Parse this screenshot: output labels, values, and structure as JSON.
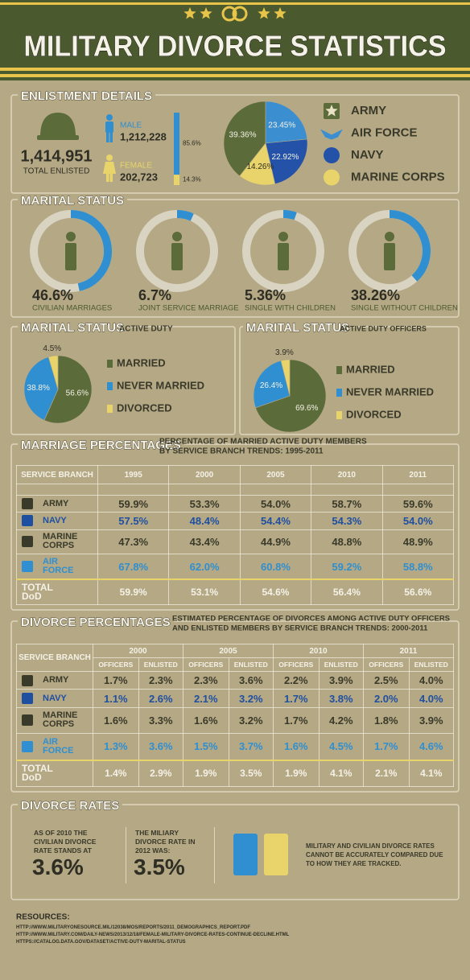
{
  "header": {
    "title": "MILITARY DIVORCE STATISTICS"
  },
  "enlistment": {
    "title": "ENLISTMENT DETAILS",
    "total": "1,414,951",
    "total_label": "TOTAL ENLISTED",
    "male": {
      "label": "MALE",
      "count": "1,212,228"
    },
    "female": {
      "label": "FEMALE",
      "count": "202,723"
    },
    "gender_share": {
      "type": "bar",
      "values": [
        85.6,
        14.3
      ],
      "value_labels": [
        "85.6%",
        "14.3%"
      ],
      "colors": [
        "#2f8fd0",
        "#e8d46a"
      ]
    },
    "branches": {
      "type": "pie",
      "categories": [
        "ARMY",
        "AIR FORCE",
        "NAVY",
        "MARINE CORPS"
      ],
      "values": [
        39.36,
        23.45,
        22.92,
        14.26
      ],
      "value_labels": [
        "39.36%",
        "23.45%",
        "22.92%",
        "14.26%"
      ],
      "colors": [
        "#5c6b3a",
        "#3b8fd0",
        "#2352a8",
        "#e8d46a"
      ]
    }
  },
  "marital_status": {
    "title": "MARITAL STATUS",
    "color": "#2f8fd0",
    "groups": [
      {
        "value": 46.6,
        "value_label": "46.6%",
        "label": "CIVILIAN MARRIAGES"
      },
      {
        "value": 6.7,
        "value_label": "6.7%",
        "label": "JOINT SERVICE MARRIAGE"
      },
      {
        "value": 5.36,
        "value_label": "5.36%",
        "label": "SINGLE WITH CHILDREN"
      },
      {
        "value": 38.26,
        "value_label": "38.26%",
        "label": "SINGLE WITHOUT CHILDREN"
      }
    ]
  },
  "active_duty": {
    "title": "MARITAL STATUS",
    "subtitle": "ACTIVE DUTY",
    "chart": {
      "type": "pie",
      "categories": [
        "MARRIED",
        "NEVER MARRIED",
        "DIVORCED"
      ],
      "values": [
        56.6,
        38.8,
        4.5
      ],
      "value_labels": [
        "56.6%",
        "38.8%",
        "4.5%"
      ],
      "colors": [
        "#5c6b3a",
        "#2f8fd0",
        "#e8d46a"
      ]
    }
  },
  "active_duty_officers": {
    "title": "MARITAL STATUS",
    "subtitle": "ACTIVE DUTY OFFICERS",
    "chart": {
      "type": "pie",
      "categories": [
        "MARRIED",
        "NEVER MARRIED",
        "DIVORCED"
      ],
      "values": [
        69.6,
        26.4,
        3.9
      ],
      "value_labels": [
        "69.6%",
        "26.4%",
        "3.9%"
      ],
      "colors": [
        "#5c6b3a",
        "#2f8fd0",
        "#e8d46a"
      ]
    }
  },
  "marriage_percentages": {
    "title": "MARRIAGE PERCENTAGES",
    "subtitle": [
      "PERCENTAGE OF MARRIED ACTIVE DUTY MEMBERS",
      "BY SERVICE BRANCH TRENDS: 1995-2011"
    ],
    "table": {
      "header": [
        "SERVICE BRANCH",
        "1995",
        "2000",
        "2005",
        "2010",
        "2011"
      ],
      "row_colors": [
        "#3a3a2a",
        "#1f4fa0",
        "#3a3a2a",
        "#2f8fd0",
        "#f4f1e6"
      ],
      "rows": [
        [
          "ARMY",
          "59.9%",
          "53.3%",
          "54.0%",
          "58.7%",
          "59.6%"
        ],
        [
          "NAVY",
          "57.5%",
          "48.4%",
          "54.4%",
          "54.3%",
          "54.0%"
        ],
        [
          "MARINE CORPS",
          "47.3%",
          "43.4%",
          "44.9%",
          "48.8%",
          "48.9%"
        ],
        [
          "AIR FORCE",
          "67.8%",
          "62.0%",
          "60.8%",
          "59.2%",
          "58.8%"
        ],
        [
          "TOTAL DoD",
          "59.9%",
          "53.1%",
          "54.6%",
          "56.4%",
          "56.6%"
        ]
      ]
    }
  },
  "divorce_percentages": {
    "title": "DIVORCE PERCENTAGES",
    "subtitle": [
      "ESTIMATED PERCENTAGE OF DIVORCES AMONG ACTIVE DUTY OFFICERS",
      "AND ENLISTED MEMBERS BY SERVICE BRANCH TRENDS: 2000-2011"
    ],
    "table": {
      "branch_header": "SERVICE BRANCH",
      "years": [
        "2000",
        "2005",
        "2010",
        "2011"
      ],
      "columns": [
        "OFFICERS",
        "ENLISTED"
      ],
      "row_colors": [
        "#3a3a2a",
        "#1f4fa0",
        "#3a3a2a",
        "#2f8fd0",
        "#f4f1e6"
      ],
      "rows": [
        [
          "ARMY",
          "1.7%",
          "2.3%",
          "2.3%",
          "3.6%",
          "2.2%",
          "3.9%",
          "2.5%",
          "4.0%"
        ],
        [
          "NAVY",
          "1.1%",
          "2.6%",
          "2.1%",
          "3.2%",
          "1.7%",
          "3.8%",
          "2.0%",
          "4.0%"
        ],
        [
          "MARINE CORPS",
          "1.6%",
          "3.3%",
          "1.6%",
          "3.2%",
          "1.7%",
          "4.2%",
          "1.8%",
          "3.9%"
        ],
        [
          "AIR FORCE",
          "1.3%",
          "3.6%",
          "1.5%",
          "3.7%",
          "1.6%",
          "4.5%",
          "1.7%",
          "4.6%"
        ],
        [
          "TOTAL DoD",
          "1.4%",
          "2.9%",
          "1.9%",
          "3.5%",
          "1.9%",
          "4.1%",
          "2.1%",
          "4.1%"
        ]
      ]
    }
  },
  "divorce_rates": {
    "title": "DIVORCE RATES",
    "civilian": {
      "text": "AS OF 2010 THE CIVILIAN DIVORCE RATE STANDS AT",
      "value": "3.6%"
    },
    "military": {
      "text": "THE MILIARY DIVORCE RATE IN 2012 WAS:",
      "value": "3.5%"
    },
    "note": "MILITARY AND CIVILIAN DIVORCE RATES CANNOT BE ACCURATELY COMPARED DUE TO HOW THEY ARE TRACKED."
  },
  "resources": {
    "title": "RESOURCES:",
    "links": [
      "HTTP://WWW.MILITARYONESOURCE.MIL/12038/MOS/REPORTS/2011_DEMOGRAPHICS_REPORT.PDF",
      "HTTP://WWW.MILITARY.COM/DAILY-NEWS/2013/12/18/FEMALE-MILITARY-DIVORCE-RATES-CONTINUE-DECLINE.HTML",
      "HTTPS://CATALOG.DATA.GOV/DATASET/ACTIVE-DUTY-MARITAL-STATUS"
    ]
  }
}
